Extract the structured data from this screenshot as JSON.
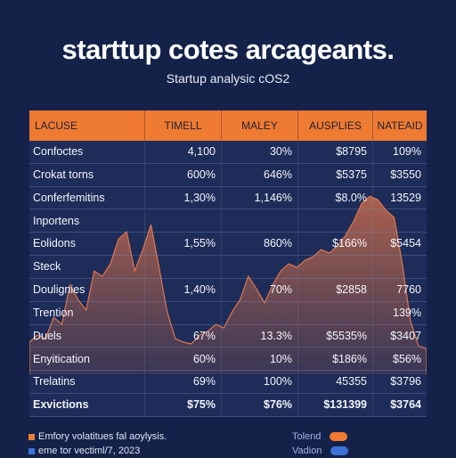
{
  "header": {
    "title": "starttup cotes arcageants.",
    "subtitle": "Startup analysic cOS2"
  },
  "colors": {
    "background": "#14224a",
    "header_row": "#ef7a32",
    "area_fill": "#d9724a",
    "legend_orange": "#ef7a32",
    "legend_blue": "#3c72d6",
    "toggle_orange": "#ef7a32",
    "toggle_blue": "#3c72d6"
  },
  "chart_data": {
    "type": "table",
    "columns": [
      "LACUSE",
      "TIMELL",
      "MALEY",
      "AUSPLIES",
      "NATEAID"
    ],
    "rows": [
      [
        "Confoctes",
        "4,100",
        "30%",
        "$8795",
        "109%"
      ],
      [
        "Crokat torns",
        "600%",
        "646%",
        "$5375",
        "$3550"
      ],
      [
        "Conferfemitins",
        "1,30%",
        "1,146%",
        "$8.0%",
        "13529"
      ],
      [
        "Inportens",
        "",
        "",
        "",
        ""
      ],
      [
        "Eolidons",
        "1,55%",
        "860%",
        "$166%",
        "$5454"
      ],
      [
        "Steck",
        "",
        "",
        "",
        ""
      ],
      [
        "Doulignies",
        "1,40%",
        "70%",
        "$2858",
        "7760"
      ],
      [
        "Trention",
        "",
        "",
        "",
        "139%"
      ],
      [
        "Duels",
        "67%",
        "13.3%",
        "$5535%",
        "$3407"
      ],
      [
        "Enyitication",
        "60%",
        "10%",
        "$186%",
        "$56%"
      ],
      [
        "Trelatins",
        "69%",
        "100%",
        "45355",
        "$3796"
      ],
      [
        "Exvictions",
        "$75%",
        "$76%",
        "$131399",
        "$3764"
      ]
    ],
    "bold_last_row": true,
    "background_area": [
      0.18,
      0.22,
      0.2,
      0.32,
      0.28,
      0.5,
      0.42,
      0.36,
      0.58,
      0.55,
      0.62,
      0.76,
      0.8,
      0.58,
      0.7,
      0.84,
      0.6,
      0.35,
      0.2,
      0.18,
      0.17,
      0.22,
      0.24,
      0.28,
      0.26,
      0.35,
      0.42,
      0.55,
      0.48,
      0.4,
      0.5,
      0.58,
      0.62,
      0.6,
      0.64,
      0.66,
      0.7,
      0.68,
      0.72,
      0.78,
      0.86,
      0.96,
      1.0,
      0.98,
      0.92,
      0.88,
      0.62,
      0.3,
      0.16,
      0.14
    ]
  },
  "legend": {
    "items": [
      {
        "label": "Emfory volatitues fal aoylysis.",
        "color": "#ef7a32"
      },
      {
        "label": "eme tor vectiml/7, 2023",
        "color": "#3c72d6"
      }
    ]
  },
  "toggles": {
    "items": [
      {
        "label": "Tolend",
        "color": "#ef7a32"
      },
      {
        "label": "Vadion",
        "color": "#3c72d6"
      }
    ]
  }
}
